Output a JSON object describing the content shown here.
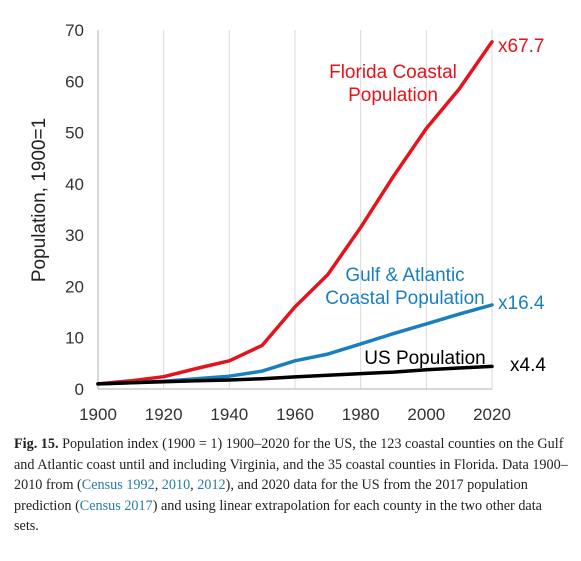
{
  "chart_data": {
    "type": "line",
    "title": "",
    "xlabel": "",
    "ylabel": "Population, 1900=1",
    "xlim": [
      1900,
      2020
    ],
    "ylim": [
      0,
      70
    ],
    "x_ticks": [
      1900,
      1920,
      1940,
      1960,
      1980,
      2000,
      2020
    ],
    "y_ticks": [
      0,
      10,
      20,
      30,
      40,
      50,
      60,
      70
    ],
    "grid": "vertical",
    "legend": "none",
    "series": [
      {
        "name": "Florida Coastal Population",
        "label_lines": [
          "Florida Coastal",
          "Population"
        ],
        "end_label": "x67.7",
        "color": "#e3141b",
        "x": [
          1900,
          1910,
          1920,
          1930,
          1940,
          1950,
          1960,
          1970,
          1980,
          1990,
          2000,
          2010,
          2020
        ],
        "y": [
          1.0,
          1.6,
          2.4,
          4.0,
          5.5,
          8.5,
          16.0,
          22.3,
          31.5,
          41.5,
          50.8,
          58.5,
          67.7
        ]
      },
      {
        "name": "Gulf & Atlantic Coastal Population",
        "label_lines": [
          "Gulf & Atlantic",
          "Coastal Population"
        ],
        "end_label": "x16.4",
        "color": "#1a7fbf",
        "x": [
          1900,
          1910,
          1920,
          1930,
          1940,
          1950,
          1960,
          1970,
          1980,
          1990,
          2000,
          2010,
          2020
        ],
        "y": [
          1.0,
          1.2,
          1.5,
          2.0,
          2.5,
          3.5,
          5.5,
          6.8,
          8.8,
          10.8,
          12.7,
          14.6,
          16.4
        ]
      },
      {
        "name": "US Population",
        "label_lines": [
          "US Population"
        ],
        "end_label": "x4.4",
        "color": "#000000",
        "x": [
          1900,
          1910,
          1920,
          1930,
          1940,
          1950,
          1960,
          1970,
          1980,
          1990,
          2000,
          2010,
          2020
        ],
        "y": [
          1.0,
          1.2,
          1.4,
          1.6,
          1.75,
          2.0,
          2.35,
          2.7,
          3.0,
          3.3,
          3.75,
          4.1,
          4.4
        ]
      }
    ]
  },
  "caption": {
    "lead": "Fig. 15.",
    "part1": " Population index (1900 = 1) 1900–2020 for the US, the 123 coastal counties on the Gulf and Atlantic coast until and including Virginia, and the 35 coastal counties in Florida. Data 1900–2010 from (",
    "ref1": "Census 1992",
    "sep1": ", ",
    "ref2": "2010",
    "sep2": ", ",
    "ref3": "2012",
    "part2": "), and 2020 data for the US from the 2017 population prediction (",
    "ref4": "Census 2017",
    "part3": ") and using linear extrapolation for each county in the two other data sets."
  }
}
